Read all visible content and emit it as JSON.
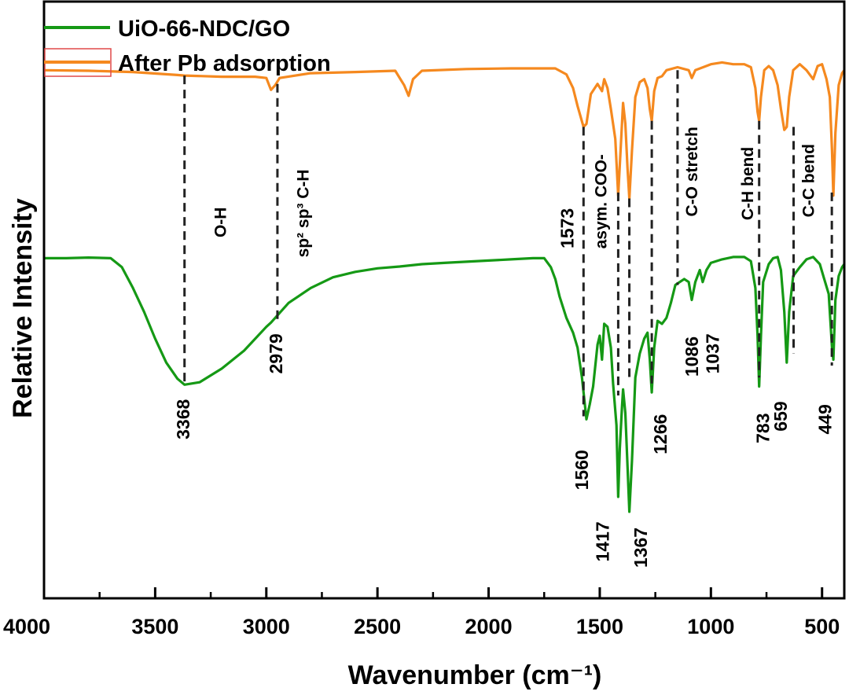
{
  "chart_data": {
    "type": "line",
    "xlabel": "Wavenumber (cm⁻¹)",
    "ylabel": "Relative Intensity",
    "xlim": [
      4000,
      400
    ],
    "ylim": [
      0,
      10
    ],
    "x_ticks": [
      {
        "value": 4000,
        "label": "4000"
      },
      {
        "value": 3500,
        "label": "3500"
      },
      {
        "value": 3000,
        "label": "3000"
      },
      {
        "value": 2500,
        "label": "2500"
      },
      {
        "value": 2000,
        "label": "2000"
      },
      {
        "value": 1500,
        "label": "1500"
      },
      {
        "value": 1000,
        "label": "1000"
      },
      {
        "value": 500,
        "label": "500"
      }
    ],
    "x_minor_ticks": [
      3750,
      3250,
      2750,
      2250,
      1750,
      1250,
      750
    ],
    "legend": {
      "position": "top-left",
      "entries": [
        {
          "name": "UiO-66-NDC/GO",
          "color": "#159915"
        },
        {
          "name": "After Pb adsorption",
          "color": "#f5891f"
        }
      ]
    },
    "series": [
      {
        "name": "UiO-66-NDC/GO",
        "color": "#159915",
        "points": [
          [
            4000,
            5.7
          ],
          [
            3900,
            5.7
          ],
          [
            3800,
            5.71
          ],
          [
            3700,
            5.7
          ],
          [
            3650,
            5.55
          ],
          [
            3600,
            5.2
          ],
          [
            3550,
            4.8
          ],
          [
            3500,
            4.35
          ],
          [
            3450,
            3.95
          ],
          [
            3400,
            3.68
          ],
          [
            3368,
            3.58
          ],
          [
            3300,
            3.62
          ],
          [
            3200,
            3.85
          ],
          [
            3100,
            4.15
          ],
          [
            3000,
            4.55
          ],
          [
            2979,
            4.62
          ],
          [
            2900,
            4.95
          ],
          [
            2800,
            5.2
          ],
          [
            2700,
            5.38
          ],
          [
            2600,
            5.47
          ],
          [
            2500,
            5.53
          ],
          [
            2400,
            5.56
          ],
          [
            2300,
            5.6
          ],
          [
            2200,
            5.62
          ],
          [
            2100,
            5.64
          ],
          [
            2000,
            5.66
          ],
          [
            1900,
            5.68
          ],
          [
            1800,
            5.7
          ],
          [
            1750,
            5.7
          ],
          [
            1720,
            5.55
          ],
          [
            1700,
            5.35
          ],
          [
            1680,
            5.05
          ],
          [
            1650,
            4.7
          ],
          [
            1620,
            4.45
          ],
          [
            1600,
            4.2
          ],
          [
            1580,
            3.7
          ],
          [
            1560,
            3.0
          ],
          [
            1545,
            3.25
          ],
          [
            1530,
            3.55
          ],
          [
            1510,
            4.25
          ],
          [
            1500,
            4.4
          ],
          [
            1490,
            4.0
          ],
          [
            1480,
            4.6
          ],
          [
            1465,
            4.55
          ],
          [
            1450,
            4.2
          ],
          [
            1440,
            3.6
          ],
          [
            1425,
            2.9
          ],
          [
            1417,
            1.7
          ],
          [
            1410,
            2.5
          ],
          [
            1400,
            3.2
          ],
          [
            1395,
            3.5
          ],
          [
            1385,
            3.1
          ],
          [
            1375,
            2.2
          ],
          [
            1367,
            1.45
          ],
          [
            1355,
            2.3
          ],
          [
            1340,
            3.7
          ],
          [
            1320,
            4.1
          ],
          [
            1300,
            4.35
          ],
          [
            1285,
            4.45
          ],
          [
            1275,
            4.0
          ],
          [
            1266,
            3.45
          ],
          [
            1255,
            4.2
          ],
          [
            1240,
            4.65
          ],
          [
            1220,
            4.6
          ],
          [
            1200,
            4.7
          ],
          [
            1180,
            4.95
          ],
          [
            1160,
            5.25
          ],
          [
            1140,
            5.3
          ],
          [
            1120,
            5.35
          ],
          [
            1100,
            5.3
          ],
          [
            1086,
            5.0
          ],
          [
            1070,
            5.3
          ],
          [
            1050,
            5.5
          ],
          [
            1037,
            5.3
          ],
          [
            1020,
            5.5
          ],
          [
            1000,
            5.62
          ],
          [
            950,
            5.68
          ],
          [
            900,
            5.72
          ],
          [
            850,
            5.72
          ],
          [
            820,
            5.65
          ],
          [
            800,
            5.2
          ],
          [
            790,
            4.4
          ],
          [
            783,
            3.55
          ],
          [
            775,
            4.4
          ],
          [
            765,
            5.3
          ],
          [
            740,
            5.6
          ],
          [
            720,
            5.7
          ],
          [
            700,
            5.72
          ],
          [
            685,
            5.5
          ],
          [
            670,
            4.8
          ],
          [
            659,
            3.95
          ],
          [
            648,
            4.8
          ],
          [
            630,
            5.4
          ],
          [
            600,
            5.55
          ],
          [
            570,
            5.68
          ],
          [
            540,
            5.72
          ],
          [
            510,
            5.6
          ],
          [
            490,
            5.35
          ],
          [
            470,
            5.1
          ],
          [
            455,
            4.2
          ],
          [
            449,
            4.0
          ],
          [
            440,
            5.0
          ],
          [
            425,
            5.4
          ],
          [
            410,
            5.55
          ],
          [
            400,
            5.6
          ]
        ]
      },
      {
        "name": "After Pb adsorption",
        "color": "#f5891f",
        "points": [
          [
            4000,
            8.85
          ],
          [
            3800,
            8.84
          ],
          [
            3600,
            8.82
          ],
          [
            3400,
            8.77
          ],
          [
            3368,
            8.76
          ],
          [
            3200,
            8.74
          ],
          [
            3050,
            8.74
          ],
          [
            3000,
            8.72
          ],
          [
            2979,
            8.52
          ],
          [
            2960,
            8.6
          ],
          [
            2940,
            8.72
          ],
          [
            2800,
            8.8
          ],
          [
            2600,
            8.82
          ],
          [
            2420,
            8.84
          ],
          [
            2380,
            8.6
          ],
          [
            2360,
            8.42
          ],
          [
            2340,
            8.7
          ],
          [
            2300,
            8.84
          ],
          [
            2100,
            8.87
          ],
          [
            1900,
            8.88
          ],
          [
            1700,
            8.88
          ],
          [
            1650,
            8.78
          ],
          [
            1620,
            8.55
          ],
          [
            1600,
            8.25
          ],
          [
            1573,
            7.9
          ],
          [
            1560,
            7.95
          ],
          [
            1540,
            8.45
          ],
          [
            1510,
            8.62
          ],
          [
            1490,
            8.5
          ],
          [
            1480,
            8.7
          ],
          [
            1465,
            8.55
          ],
          [
            1450,
            8.2
          ],
          [
            1430,
            7.7
          ],
          [
            1417,
            6.75
          ],
          [
            1405,
            7.6
          ],
          [
            1395,
            8.3
          ],
          [
            1385,
            7.95
          ],
          [
            1375,
            7.2
          ],
          [
            1367,
            6.7
          ],
          [
            1355,
            7.5
          ],
          [
            1340,
            8.4
          ],
          [
            1320,
            8.65
          ],
          [
            1300,
            8.7
          ],
          [
            1285,
            8.55
          ],
          [
            1275,
            8.2
          ],
          [
            1266,
            8.0
          ],
          [
            1255,
            8.5
          ],
          [
            1240,
            8.72
          ],
          [
            1220,
            8.75
          ],
          [
            1200,
            8.85
          ],
          [
            1150,
            8.9
          ],
          [
            1100,
            8.85
          ],
          [
            1086,
            8.72
          ],
          [
            1070,
            8.85
          ],
          [
            1000,
            8.95
          ],
          [
            950,
            8.98
          ],
          [
            900,
            8.95
          ],
          [
            850,
            8.95
          ],
          [
            820,
            8.9
          ],
          [
            800,
            8.55
          ],
          [
            790,
            8.15
          ],
          [
            783,
            8.0
          ],
          [
            775,
            8.4
          ],
          [
            760,
            8.85
          ],
          [
            740,
            8.92
          ],
          [
            720,
            8.85
          ],
          [
            700,
            8.6
          ],
          [
            685,
            8.2
          ],
          [
            670,
            7.85
          ],
          [
            659,
            7.9
          ],
          [
            648,
            8.4
          ],
          [
            630,
            8.85
          ],
          [
            600,
            8.95
          ],
          [
            570,
            8.85
          ],
          [
            540,
            8.7
          ],
          [
            520,
            8.92
          ],
          [
            500,
            8.95
          ],
          [
            480,
            8.7
          ],
          [
            465,
            8.4
          ],
          [
            455,
            7.5
          ],
          [
            449,
            6.75
          ],
          [
            440,
            7.8
          ],
          [
            425,
            8.6
          ],
          [
            410,
            8.8
          ],
          [
            400,
            8.85
          ]
        ]
      }
    ],
    "reference_lines": [
      {
        "x": 3368,
        "y_top": 8.76,
        "y_bottom": 3.58
      },
      {
        "x": 2950,
        "y_top": 8.62,
        "y_bottom": 4.62
      },
      {
        "x": 1573,
        "y_top": 7.9,
        "y_bottom": 3.05
      },
      {
        "x": 1417,
        "y_top": 6.8,
        "y_bottom": 3.4
      },
      {
        "x": 1367,
        "y_top": 6.7,
        "y_bottom": 3.7
      },
      {
        "x": 1266,
        "y_top": 8.0,
        "y_bottom": 3.6
      },
      {
        "x": 1150,
        "y_top": 8.85,
        "y_bottom": 5.25
      },
      {
        "x": 783,
        "y_top": 8.0,
        "y_bottom": 3.7
      },
      {
        "x": 628,
        "y_top": 7.9,
        "y_bottom": 4.1
      },
      {
        "x": 456,
        "y_top": 6.8,
        "y_bottom": 3.9
      }
    ],
    "peak_labels": [
      {
        "text": "3368",
        "x": 3368,
        "y": 3.0,
        "rotate": -90
      },
      {
        "text": "2979",
        "x": 2950,
        "y": 4.1,
        "rotate": -90
      },
      {
        "text": "1573",
        "x": 1640,
        "y": 6.2,
        "rotate": -90
      },
      {
        "text": "1560",
        "x": 1575,
        "y": 2.15,
        "rotate": -90
      },
      {
        "text": "1417",
        "x": 1480,
        "y": 0.95,
        "rotate": -90
      },
      {
        "text": "1367",
        "x": 1310,
        "y": 0.85,
        "rotate": -90
      },
      {
        "text": "1266",
        "x": 1220,
        "y": 2.75,
        "rotate": -90
      },
      {
        "text": "1086",
        "x": 1080,
        "y": 4.05,
        "rotate": -90
      },
      {
        "text": "1037",
        "x": 985,
        "y": 4.1,
        "rotate": -90
      },
      {
        "text": "783",
        "x": 760,
        "y": 2.85,
        "rotate": -90
      },
      {
        "text": "659",
        "x": 680,
        "y": 3.05,
        "rotate": -90
      },
      {
        "text": "449",
        "x": 480,
        "y": 3.0,
        "rotate": -90
      }
    ],
    "assignment_labels": [
      {
        "text": "O-H",
        "x": 3200,
        "y": 6.3,
        "rotate": -90
      },
      {
        "text": "sp² sp³ C-H",
        "x": 2830,
        "y": 6.45,
        "rotate": -90
      },
      {
        "text": "asym. COO-",
        "x": 1490,
        "y": 6.65,
        "rotate": -90
      },
      {
        "text": "C-O stretch",
        "x": 1080,
        "y": 7.15,
        "rotate": -90
      },
      {
        "text": "C-H bend",
        "x": 830,
        "y": 6.95,
        "rotate": -90
      },
      {
        "text": "C-C bend",
        "x": 555,
        "y": 7.0,
        "rotate": -90
      }
    ]
  }
}
